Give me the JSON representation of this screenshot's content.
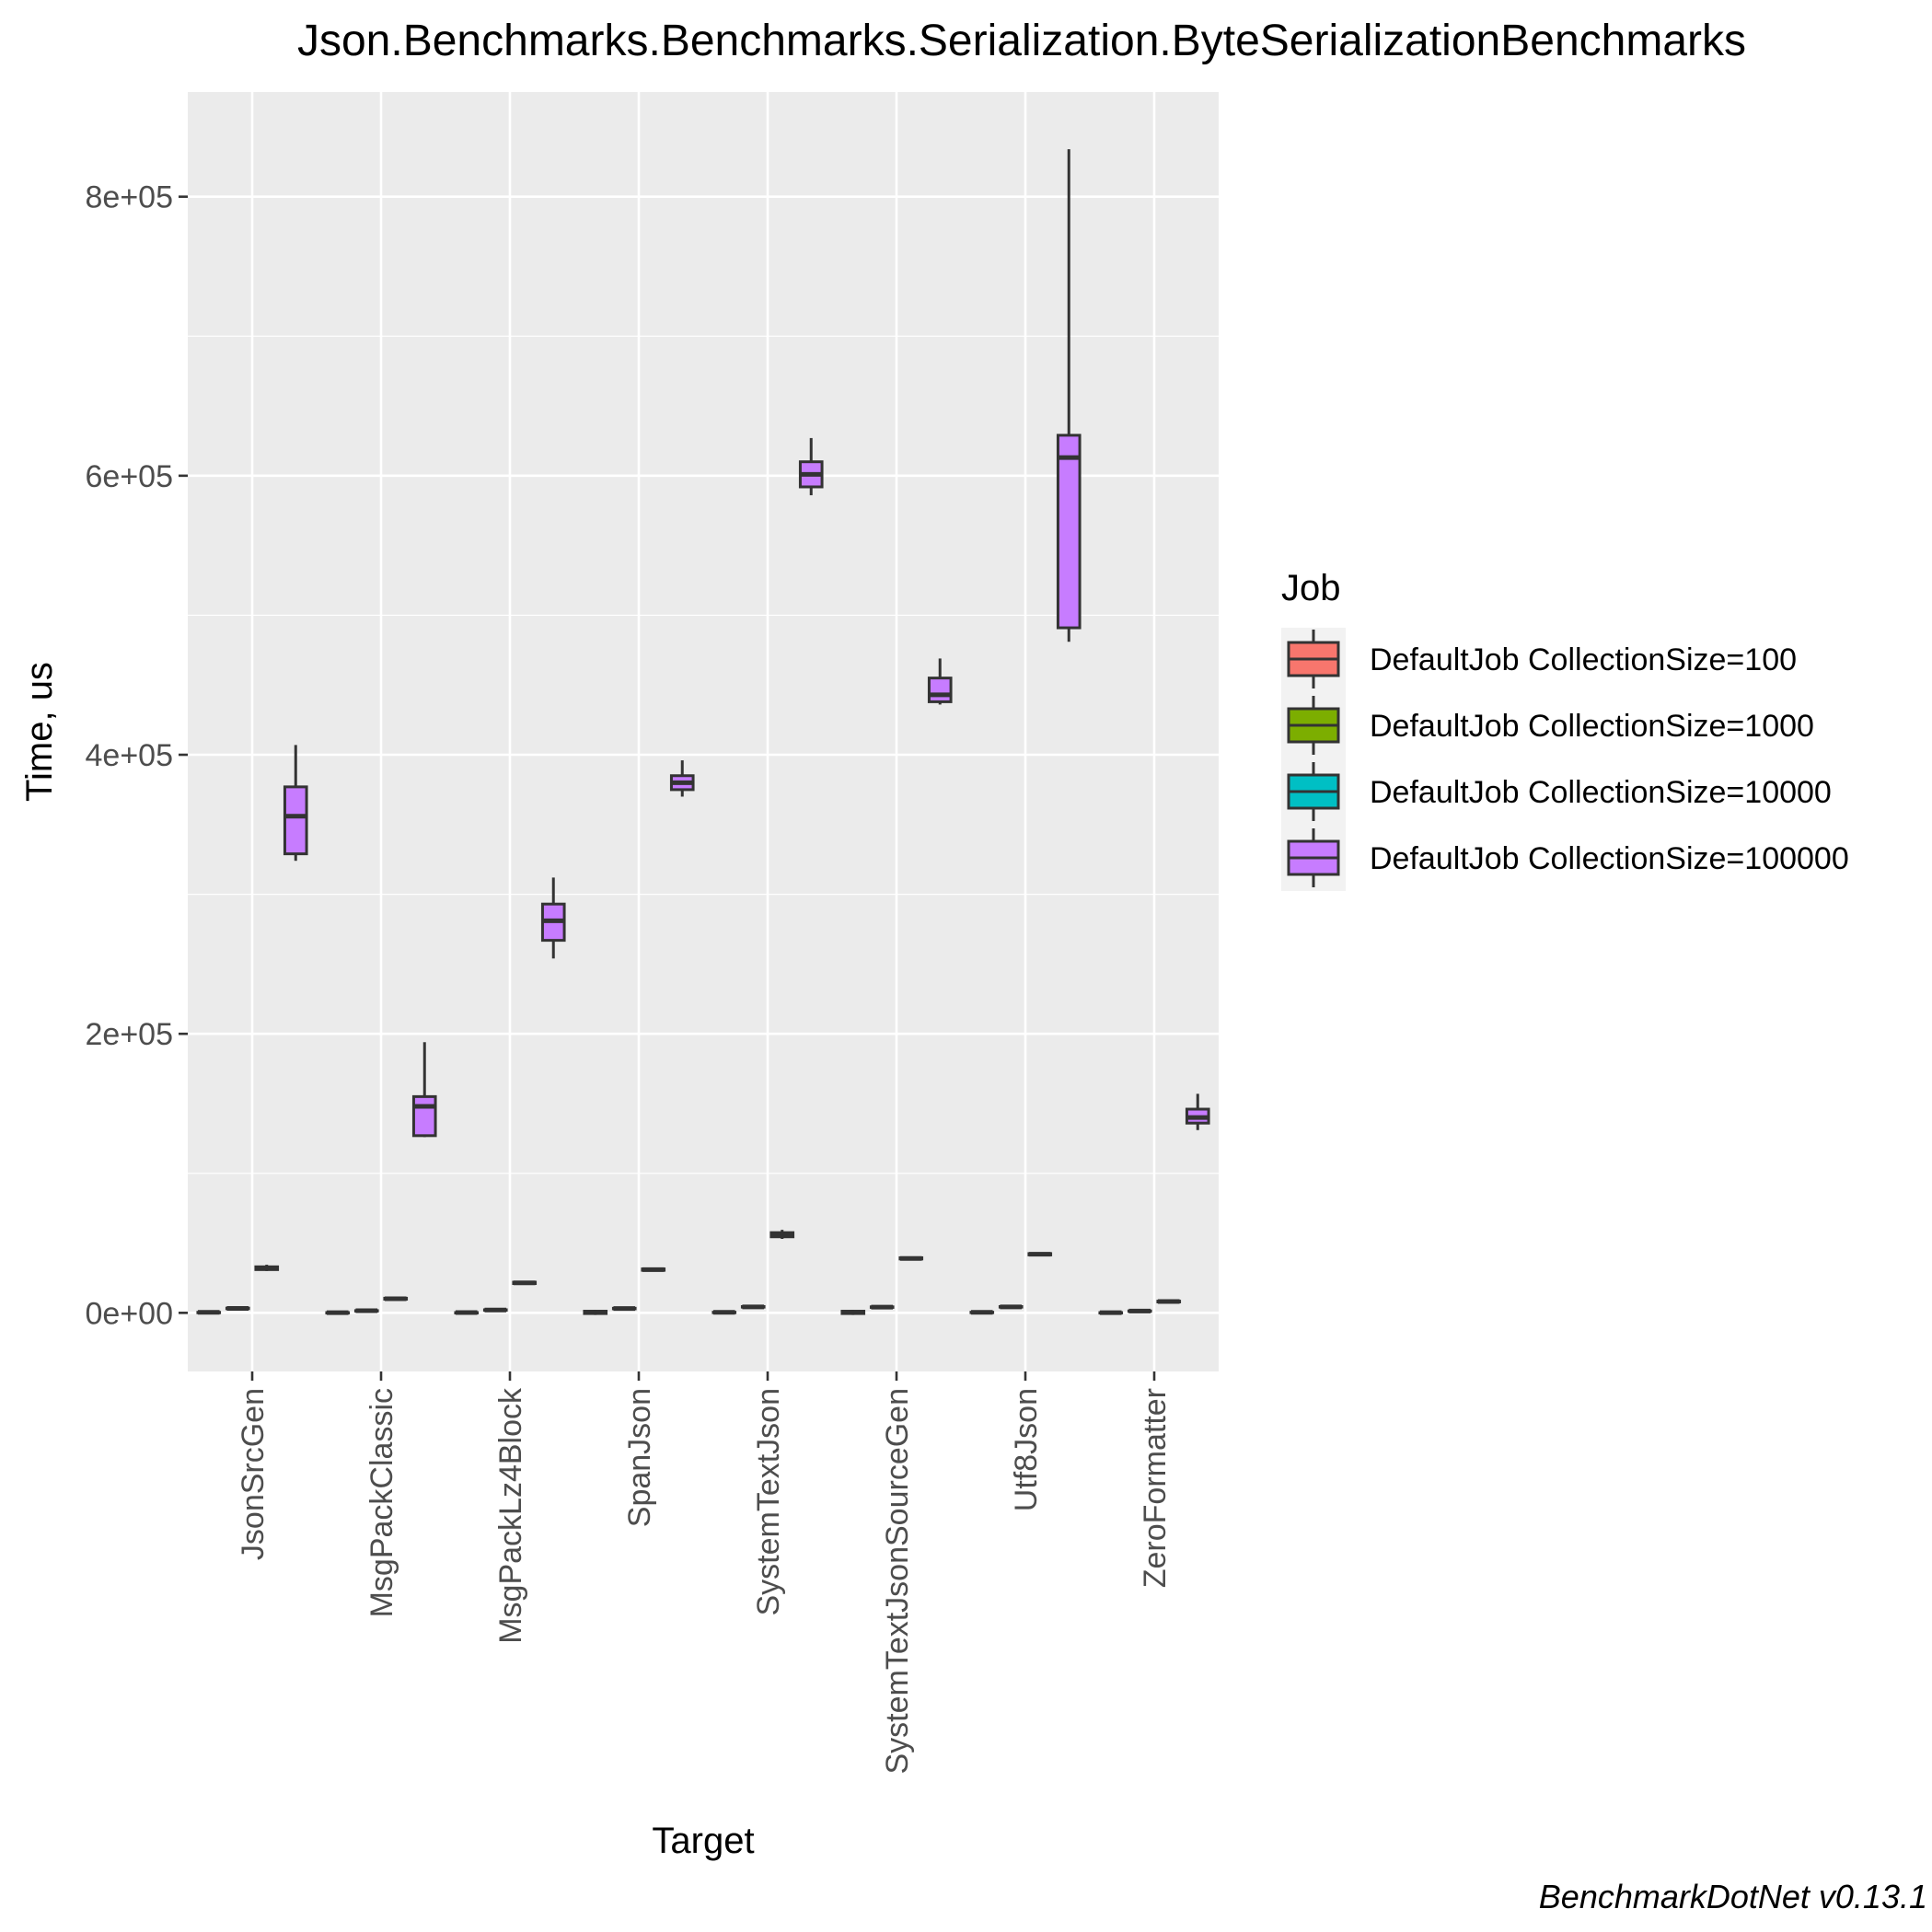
{
  "chart_data": {
    "type": "boxplot",
    "title": "Json.Benchmarks.Benchmarks.Serialization.ByteSerializationBenchmarks",
    "xlabel": "Target",
    "ylabel": "Time, us",
    "caption": "BenchmarkDotNet v0.13.1",
    "ylim": [
      -42000,
      875000
    ],
    "yticks": [
      0,
      200000,
      400000,
      600000,
      800000
    ],
    "ytick_labels": [
      "0e+00",
      "2e+05",
      "4e+05",
      "6e+05",
      "8e+05"
    ],
    "grid": true,
    "legend_position": "right",
    "legend_title": "Job",
    "categories": [
      "JsonSrcGen",
      "MsgPackClassic",
      "MsgPackLz4Block",
      "SpanJson",
      "SystemTextJson",
      "SystemTextJsonSourceGen",
      "Utf8Json",
      "ZeroFormatter"
    ],
    "series": [
      {
        "name": "DefaultJob CollectionSize=100",
        "color": "#F8766D",
        "boxes": [
          {
            "min": 200,
            "q1": 300,
            "median": 350,
            "q3": 400,
            "max": 500
          },
          {
            "min": 100,
            "q1": 150,
            "median": 180,
            "q3": 200,
            "max": 250
          },
          {
            "min": 120,
            "q1": 160,
            "median": 190,
            "q3": 220,
            "max": 280
          },
          {
            "min": -1500,
            "q1": -500,
            "median": 300,
            "q3": 1200,
            "max": 2200
          },
          {
            "min": 250,
            "q1": 350,
            "median": 400,
            "q3": 450,
            "max": 550
          },
          {
            "min": -1500,
            "q1": -500,
            "median": 300,
            "q3": 1200,
            "max": 2200
          },
          {
            "min": 300,
            "q1": 380,
            "median": 420,
            "q3": 460,
            "max": 550
          },
          {
            "min": 100,
            "q1": 140,
            "median": 160,
            "q3": 190,
            "max": 240
          }
        ]
      },
      {
        "name": "DefaultJob CollectionSize=1000",
        "color": "#7CAE00",
        "boxes": [
          {
            "min": 2700,
            "q1": 3000,
            "median": 3200,
            "q3": 3400,
            "max": 3800
          },
          {
            "min": 1200,
            "q1": 1400,
            "median": 1500,
            "q3": 1600,
            "max": 1800
          },
          {
            "min": 1700,
            "q1": 1900,
            "median": 2000,
            "q3": 2200,
            "max": 2500
          },
          {
            "min": 2600,
            "q1": 2900,
            "median": 3100,
            "q3": 3300,
            "max": 3700
          },
          {
            "min": 3800,
            "q1": 4100,
            "median": 4300,
            "q3": 4500,
            "max": 4900
          },
          {
            "min": 3600,
            "q1": 3900,
            "median": 4100,
            "q3": 4300,
            "max": 4700
          },
          {
            "min": 3800,
            "q1": 4100,
            "median": 4300,
            "q3": 4500,
            "max": 4900
          },
          {
            "min": 1000,
            "q1": 1200,
            "median": 1300,
            "q3": 1400,
            "max": 1600
          }
        ]
      },
      {
        "name": "DefaultJob CollectionSize=10000",
        "color": "#00BFC4",
        "boxes": [
          {
            "min": 30000,
            "q1": 31000,
            "median": 32000,
            "q3": 33000,
            "max": 34500
          },
          {
            "min": 9200,
            "q1": 9800,
            "median": 10100,
            "q3": 10500,
            "max": 11000
          },
          {
            "min": 20500,
            "q1": 21000,
            "median": 21500,
            "q3": 22000,
            "max": 22800
          },
          {
            "min": 30000,
            "q1": 30500,
            "median": 31000,
            "q3": 31500,
            "max": 32500
          },
          {
            "min": 53000,
            "q1": 54500,
            "median": 56000,
            "q3": 57500,
            "max": 59500
          },
          {
            "min": 38000,
            "q1": 38600,
            "median": 39000,
            "q3": 39500,
            "max": 40200
          },
          {
            "min": 41000,
            "q1": 41500,
            "median": 42000,
            "q3": 42500,
            "max": 43300
          },
          {
            "min": 7400,
            "q1": 7800,
            "median": 8100,
            "q3": 8400,
            "max": 8900
          }
        ]
      },
      {
        "name": "DefaultJob CollectionSize=100000",
        "color": "#C77CFF",
        "boxes": [
          {
            "min": 324000,
            "q1": 329000,
            "median": 356000,
            "q3": 377000,
            "max": 407000
          },
          {
            "min": 126000,
            "q1": 127000,
            "median": 148000,
            "q3": 155000,
            "max": 194000
          },
          {
            "min": 254000,
            "q1": 267000,
            "median": 281000,
            "q3": 293000,
            "max": 312000
          },
          {
            "min": 370000,
            "q1": 375000,
            "median": 380000,
            "q3": 385000,
            "max": 396000
          },
          {
            "min": 586000,
            "q1": 592000,
            "median": 601000,
            "q3": 610000,
            "max": 627000
          },
          {
            "min": 436000,
            "q1": 438000,
            "median": 443000,
            "q3": 455000,
            "max": 469000
          },
          {
            "min": 481000,
            "q1": 491000,
            "median": 613000,
            "q3": 629000,
            "max": 834000
          },
          {
            "min": 131000,
            "q1": 136000,
            "median": 140000,
            "q3": 146000,
            "max": 157000
          }
        ]
      }
    ]
  }
}
